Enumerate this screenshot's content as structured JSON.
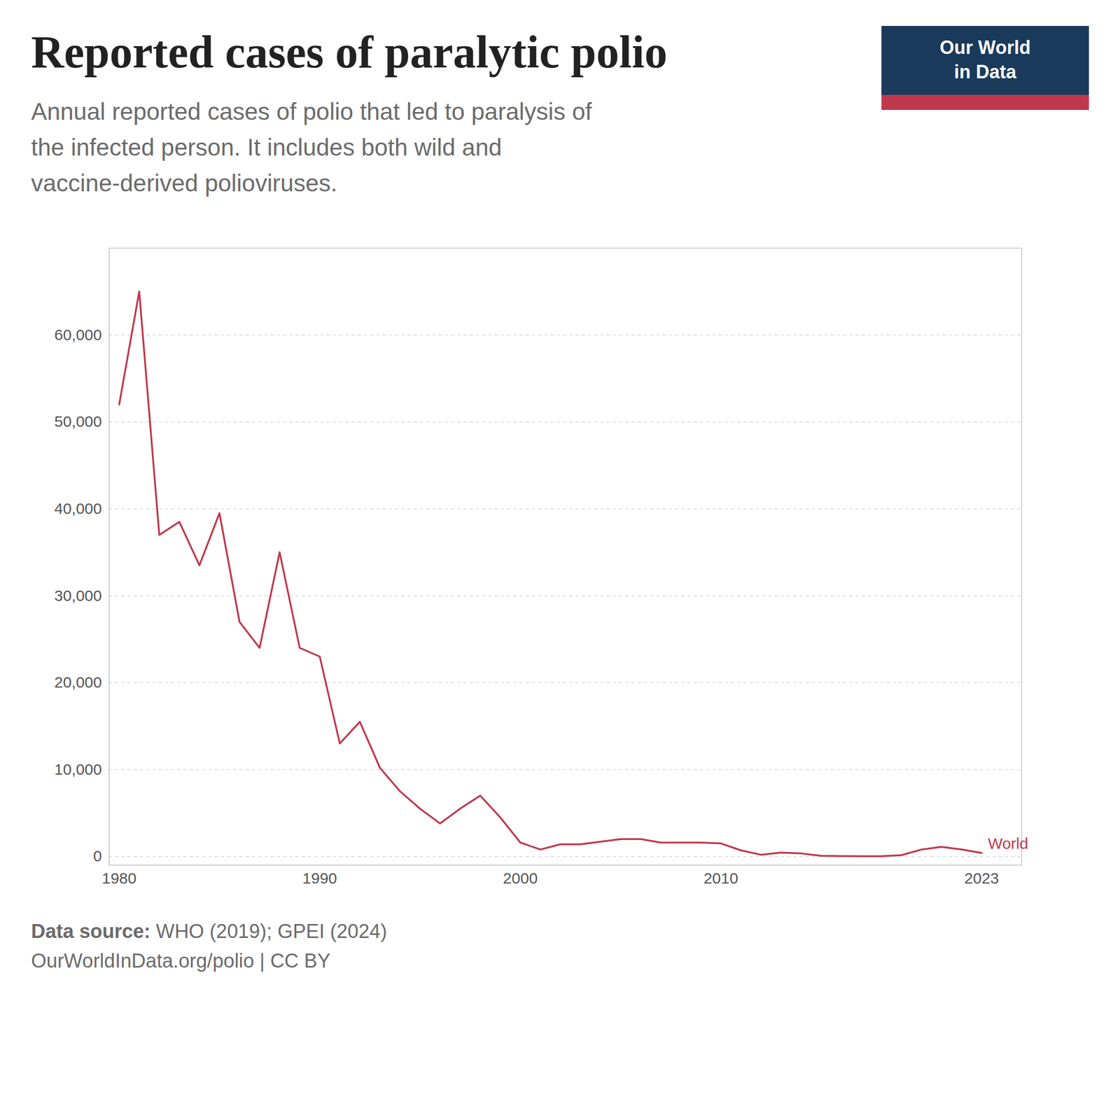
{
  "chart_data": {
    "type": "line",
    "title": "Reported cases of paralytic polio",
    "subtitle": "Annual reported cases of polio that led to paralysis of\nthe infected person. It includes both wild and\nvaccine-derived polioviruses.",
    "x": [
      1980,
      1981,
      1982,
      1983,
      1984,
      1985,
      1986,
      1987,
      1988,
      1989,
      1990,
      1991,
      1992,
      1993,
      1994,
      1995,
      1996,
      1997,
      1998,
      1999,
      2000,
      2001,
      2002,
      2003,
      2004,
      2005,
      2006,
      2007,
      2008,
      2009,
      2010,
      2011,
      2012,
      2013,
      2014,
      2015,
      2016,
      2017,
      2018,
      2019,
      2020,
      2021,
      2022,
      2023
    ],
    "series": [
      {
        "name": "World",
        "color": "#C0384B",
        "values": [
          52000,
          65000,
          37000,
          38500,
          33500,
          39500,
          27000,
          24000,
          35000,
          24000,
          23000,
          13000,
          15500,
          10200,
          7500,
          5500,
          3800,
          5500,
          7000,
          4500,
          1600,
          800,
          1400,
          1400,
          1700,
          2000,
          2000,
          1600,
          1600,
          1600,
          1500,
          700,
          200,
          450,
          350,
          80,
          40,
          25,
          25,
          150,
          800,
          1100,
          800,
          400
        ]
      }
    ],
    "xlim": [
      1979.5,
      2025
    ],
    "xticks": [
      1980,
      1990,
      2000,
      2010,
      2023
    ],
    "ylim": [
      -1000,
      70000
    ],
    "yticks": [
      0,
      {
        "value": 10000,
        "label": "10,000"
      },
      {
        "value": 20000,
        "label": "20,000"
      },
      {
        "value": 30000,
        "label": "30,000"
      },
      {
        "value": 40000,
        "label": "40,000"
      },
      {
        "value": 50000,
        "label": "50,000"
      },
      {
        "value": 60000,
        "label": "60,000"
      }
    ],
    "grid": true,
    "source": {
      "label": "Data source:",
      "text": " WHO (2019); GPEI (2024)",
      "url": "OurWorldInData.org/polio | CC BY"
    },
    "logo": {
      "lines": [
        "Our World",
        "in Data"
      ],
      "color": "#1a3a5c",
      "strip_color": "#c0384b"
    }
  }
}
